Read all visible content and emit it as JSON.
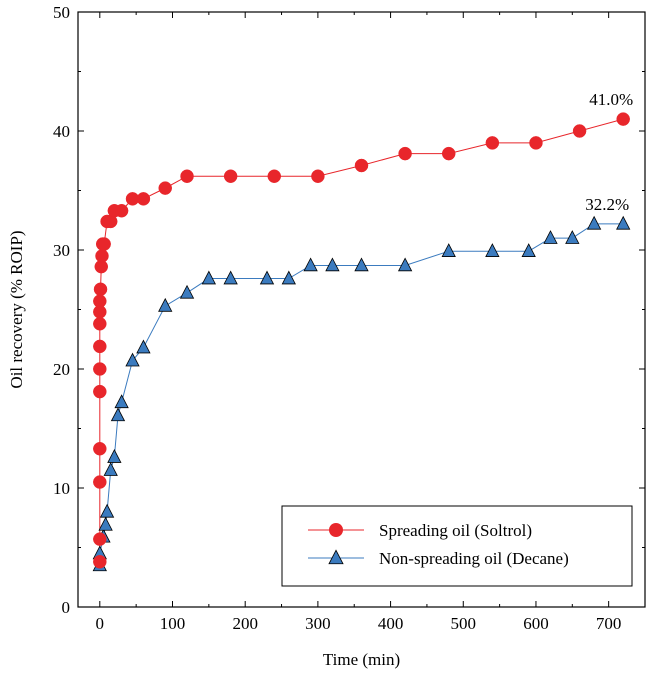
{
  "chart_data": {
    "type": "line",
    "title": "",
    "xlabel": "Time (min)",
    "ylabel": "Oil recovery (% ROIP)",
    "xlim": [
      -30,
      750
    ],
    "ylim": [
      0,
      50
    ],
    "xticks": [
      0,
      100,
      200,
      300,
      400,
      500,
      600,
      700
    ],
    "yticks": [
      0,
      10,
      20,
      30,
      40,
      50
    ],
    "grid": false,
    "legend_position": "bottom-right",
    "series": [
      {
        "name": "Spreading oil (Soltrol)",
        "color": "#e8262b",
        "line_color": "#e8262b",
        "marker": "circle",
        "x": [
          0,
          0,
          0,
          0,
          0,
          0,
          0,
          0,
          0,
          0,
          1,
          2,
          3,
          4,
          6,
          10,
          15,
          20,
          30,
          45,
          60,
          90,
          120,
          180,
          240,
          300,
          360,
          420,
          480,
          540,
          600,
          660,
          720
        ],
        "y": [
          3.8,
          5.7,
          10.5,
          13.3,
          18.1,
          20.0,
          21.9,
          23.8,
          24.8,
          25.7,
          26.7,
          28.6,
          29.5,
          30.5,
          30.5,
          32.4,
          32.4,
          33.3,
          33.3,
          34.3,
          34.3,
          35.2,
          36.2,
          36.2,
          36.2,
          36.2,
          37.1,
          38.1,
          38.1,
          39.0,
          39.0,
          40.0,
          41.0
        ]
      },
      {
        "name": "Non-spreading oil (Decane)",
        "color": "#3b7bbf",
        "line_color": "#3b7bbf",
        "marker": "triangle",
        "x": [
          0,
          0,
          5,
          8,
          10,
          15,
          20,
          25,
          30,
          45,
          60,
          90,
          120,
          150,
          180,
          230,
          260,
          290,
          320,
          360,
          420,
          480,
          540,
          590,
          620,
          650,
          680,
          720
        ],
        "y": [
          3.5,
          4.5,
          5.9,
          6.9,
          8.0,
          11.5,
          12.6,
          16.1,
          17.2,
          20.7,
          21.8,
          25.3,
          26.4,
          27.6,
          27.6,
          27.6,
          27.6,
          28.7,
          28.7,
          28.7,
          28.7,
          29.9,
          29.9,
          29.9,
          31.0,
          31.0,
          32.2,
          32.2
        ]
      }
    ],
    "annotations": [
      {
        "text": "41.0%",
        "x": 720,
        "y": 41.0
      },
      {
        "text": "32.2%",
        "x": 720,
        "y": 32.2
      }
    ]
  }
}
